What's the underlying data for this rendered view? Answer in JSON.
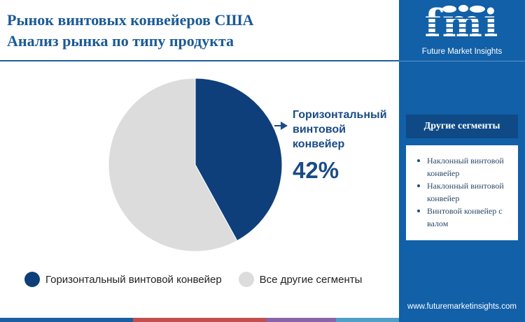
{
  "header": {
    "title_line1": "Рынок винтовых конвейеров США",
    "title_line2": "Анализ рынка по типу продукта"
  },
  "chart_data": {
    "type": "pie",
    "slices": [
      {
        "label": "Горизонтальный винтовой конвейер",
        "value": 42,
        "color": "#0f3f7a"
      },
      {
        "label": "Все другие сегменты",
        "value": 58,
        "color": "#dcdcdc"
      }
    ],
    "callout": {
      "label": "Горизонтальный винтовой конвейер",
      "value_text": "42%"
    },
    "legend": [
      {
        "label": "Горизонтальный винтовой конвейер",
        "color": "#0f3f7a"
      },
      {
        "label": "Все другие сегменты",
        "color": "#dcdcdc"
      }
    ],
    "legend_position": "bottom"
  },
  "sidebar": {
    "logo_text": "fmi",
    "logo_caption": "Future Market Insights",
    "other_segments_title": "Другие сегменты",
    "other_segments": [
      "Наклонный винтовой конвейер",
      "Наклонный винтовой конвейер",
      "Винтовой конвейер с валом"
    ],
    "website": "www.futuremarketinsights.com",
    "background_color": "#1160a8"
  },
  "colors": {
    "accent": "#1a5a96",
    "bottom_bar": [
      "#1b5ea1",
      "#c0504d",
      "#8a64a8",
      "#4fa0c4"
    ]
  }
}
